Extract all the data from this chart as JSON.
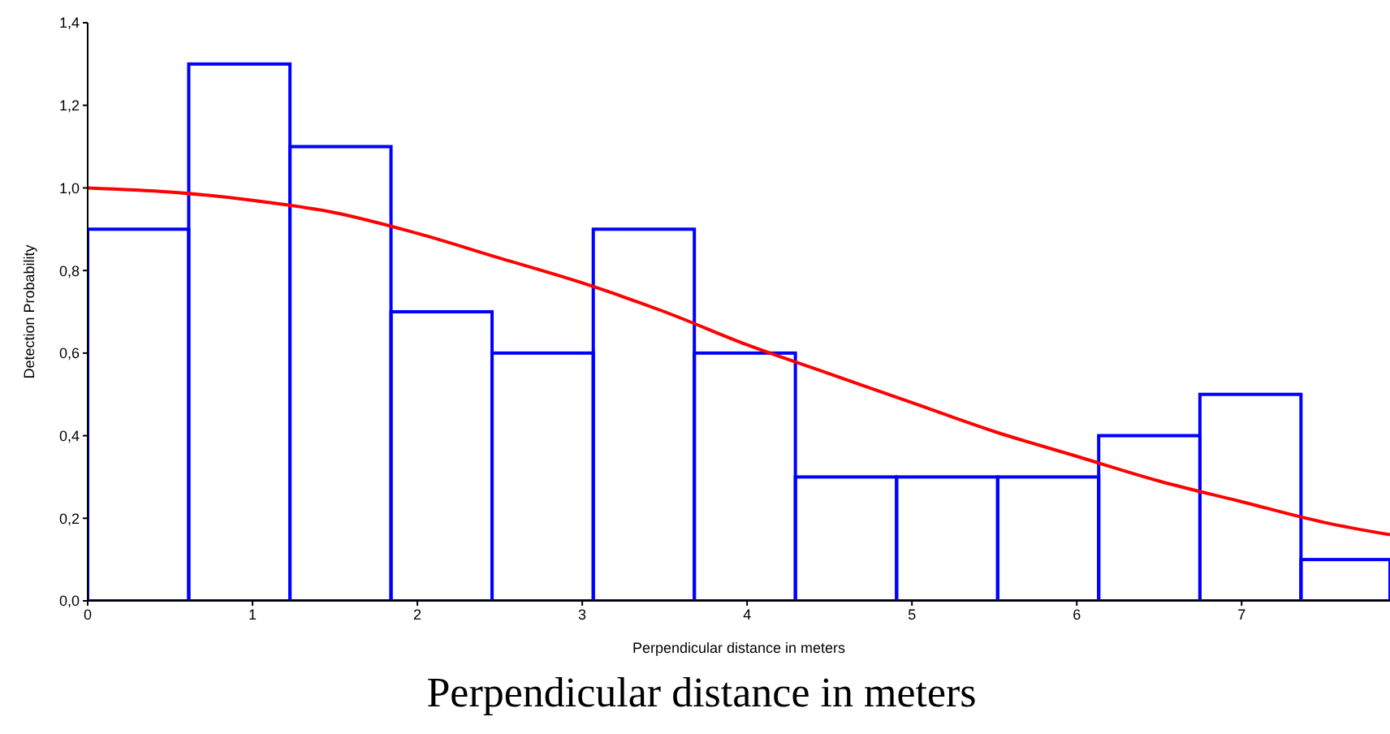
{
  "chart_data": {
    "type": "histogram",
    "xlabel": "Perpendicular distance in meters",
    "ylabel": "Detection Probability",
    "bins": [
      0,
      0.613,
      1.227,
      1.84,
      2.453,
      3.067,
      3.68,
      4.293,
      4.907,
      5.52,
      6.133,
      6.747,
      7.36,
      7.9
    ],
    "values": [
      0.9,
      1.3,
      1.1,
      0.7,
      0.6,
      0.9,
      0.6,
      0.3,
      0.3,
      0.3,
      0.4,
      0.5,
      0.1
    ],
    "color": "#0000ff",
    "series": [
      {
        "type": "line",
        "color": "#ff0000",
        "x": [
          0,
          0.5,
          1,
          1.5,
          2,
          2.5,
          3,
          3.5,
          4,
          4.5,
          5,
          5.5,
          6,
          6.5,
          7,
          7.5,
          7.9
        ],
        "values": [
          1.0,
          0.99,
          0.97,
          0.94,
          0.89,
          0.83,
          0.77,
          0.7,
          0.62,
          0.55,
          0.48,
          0.41,
          0.35,
          0.29,
          0.24,
          0.19,
          0.16
        ]
      }
    ],
    "xlim": [
      0,
      7.9
    ],
    "xticks": [
      0,
      1,
      2,
      3,
      4,
      5,
      6,
      7
    ],
    "ylim": [
      0,
      1.4
    ],
    "yticks": [
      {
        "value": 0,
        "label": "0,0"
      },
      {
        "value": 0.2,
        "label": "0,2"
      },
      {
        "value": 0.4,
        "label": "0,4"
      },
      {
        "value": 0.6,
        "label": "0,6"
      },
      {
        "value": 0.8,
        "label": "0,8"
      },
      {
        "value": 1,
        "label": "1,0"
      },
      {
        "value": 1.2,
        "label": "1,2"
      },
      {
        "value": 1.4,
        "label": "1,4"
      }
    ],
    "marker": "none",
    "line_style": "solid",
    "annotations": [
      "Perpendicular distance in meters"
    ]
  }
}
